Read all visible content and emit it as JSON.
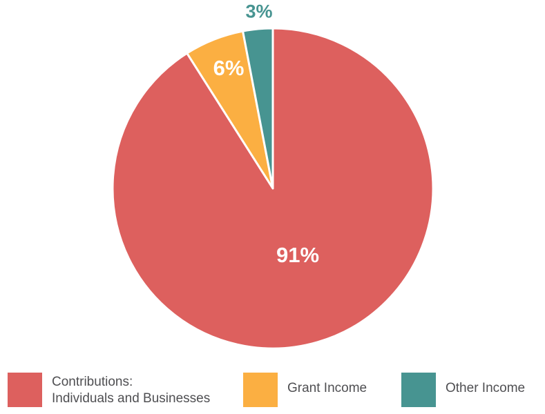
{
  "chart_data": {
    "type": "pie",
    "title": "",
    "center": [
      395,
      273
    ],
    "radius": 232,
    "slices": [
      {
        "name": "Contributions: Individuals and Businesses",
        "value": 91,
        "label": "91%",
        "color": "#dd605e",
        "label_color": "#ffffff"
      },
      {
        "name": "Grant Income",
        "value": 6,
        "label": "6%",
        "color": "#fbaf42",
        "label_color": "#ffffff"
      },
      {
        "name": "Other Income",
        "value": 3,
        "label": "3%",
        "color": "#479491",
        "label_color": "#479491"
      }
    ],
    "legend": {
      "position": "bottom",
      "entries": [
        {
          "line1": "Contributions:",
          "line2": "Individuals and Businesses",
          "color": "#dd605e"
        },
        {
          "line1": "Grant Income",
          "color": "#fbaf42"
        },
        {
          "line1": "Other Income",
          "color": "#479491"
        }
      ]
    }
  }
}
